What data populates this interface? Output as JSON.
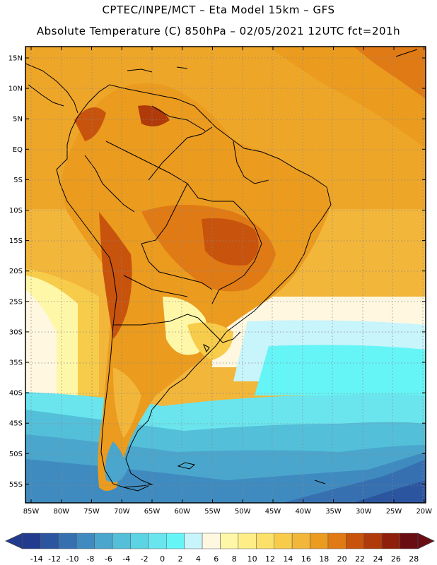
{
  "header": {
    "line1": "CPTEC/INPE/MCT –  Eta Model 15km – GFS",
    "line2": "Absolute Temperature (C) 850hPa – 02/05/2021 12UTC fct=201h"
  },
  "map": {
    "lat_ticks": [
      "15N",
      "10N",
      "5N",
      "EQ",
      "5S",
      "10S",
      "15S",
      "20S",
      "25S",
      "30S",
      "35S",
      "40S",
      "45S",
      "50S",
      "55S"
    ],
    "lon_ticks": [
      "85W",
      "80W",
      "75W",
      "70W",
      "65W",
      "60W",
      "55W",
      "50W",
      "45W",
      "40W",
      "35W",
      "30W",
      "25W",
      "20W"
    ]
  },
  "colorbar": {
    "labels": [
      "-14",
      "-12",
      "-10",
      "-8",
      "-6",
      "-4",
      "-2",
      "0",
      "2",
      "4",
      "6",
      "8",
      "10",
      "12",
      "14",
      "16",
      "18",
      "20",
      "22",
      "24",
      "26",
      "28"
    ],
    "colors": [
      "#233b8e",
      "#2c55a0",
      "#3670b1",
      "#3f8bc0",
      "#4aa6cd",
      "#54bfd9",
      "#5cd4e4",
      "#6ae5ee",
      "#66f5f7",
      "#c8f4fb",
      "#fff7e0",
      "#fff7a8",
      "#ffee88",
      "#fbe06a",
      "#f7cc4a",
      "#f2b63a",
      "#eb9b1e",
      "#e07a15",
      "#c8530d",
      "#b03a09",
      "#8e1f0a",
      "#6a0d12"
    ]
  }
}
